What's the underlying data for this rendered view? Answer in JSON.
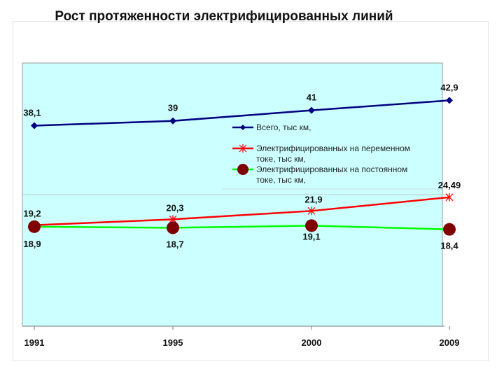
{
  "chart_data": {
    "type": "line",
    "title": "Рост протяженности электрифицированных линий",
    "x": [
      "1991",
      "1995",
      "2000",
      "2009"
    ],
    "ylim": [
      0,
      50
    ],
    "grid": true,
    "legend_position": "center-right",
    "plot_background": "#ccffff",
    "series": [
      {
        "name": "Всего, тыс км,",
        "values": [
          38.1,
          39,
          41,
          42.9
        ],
        "labels": [
          "38,1",
          "39",
          "41",
          "42,9"
        ],
        "color": "#000080",
        "marker": "diamond"
      },
      {
        "name": "Электрифицированных  на переменном токе, тыс км,",
        "values": [
          19.2,
          20.3,
          21.9,
          24.49
        ],
        "labels": [
          "19,2",
          "20,3",
          "21,9",
          "24,49"
        ],
        "color": "#ff0000",
        "marker": "star"
      },
      {
        "name": "Электрифицированных  на постоянном токе, тыс км,",
        "values": [
          18.9,
          18.7,
          19.1,
          18.4
        ],
        "labels": [
          "18,9",
          "18,7",
          "19,1",
          "18,4"
        ],
        "color": "#00ff00",
        "marker": "circle",
        "marker_color": "#800000"
      }
    ]
  }
}
